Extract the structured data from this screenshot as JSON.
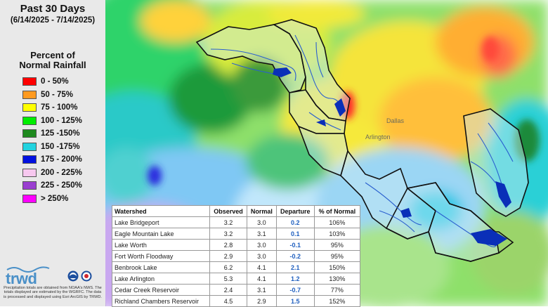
{
  "header": {
    "title": "Past 30 Days",
    "date_range": "(6/14/2025 - 7/14/2025)"
  },
  "legend": {
    "heading_line1": "Percent of",
    "heading_line2": "Normal Rainfall",
    "items": [
      {
        "label": "0 - 50%",
        "color": "#ff0000"
      },
      {
        "label": "50 - 75%",
        "color": "#ff9a1f"
      },
      {
        "label": "75 - 100%",
        "color": "#ffff00"
      },
      {
        "label": "100 - 125%",
        "color": "#00ee00"
      },
      {
        "label": "125 -150%",
        "color": "#1f8a1f"
      },
      {
        "label": "150 -175%",
        "color": "#22d3df"
      },
      {
        "label": "175 - 200%",
        "color": "#0010e0"
      },
      {
        "label": "200 - 225%",
        "color": "#f7c8ef"
      },
      {
        "label": "225 - 250%",
        "color": "#9a3fd0"
      },
      {
        "label": "> 250%",
        "color": "#ff00ff"
      }
    ]
  },
  "branding": {
    "logo_text": "trwd",
    "disclaimer": "Precipitation totals are obtained from NOAA's NWS. The totals displayed are estimated by the WGRFC. The data is processed and displayed using Esri ArcGIS by TRWD.",
    "agency_icons": [
      "noaa-icon",
      "nws-icon"
    ]
  },
  "table": {
    "headers": [
      "Watershed",
      "Observed",
      "Normal",
      "Departure",
      "% of Normal"
    ],
    "rows": [
      [
        "Lake Bridgeport",
        "3.2",
        "3.0",
        "0.2",
        "106%"
      ],
      [
        "Eagle Mountain Lake",
        "3.2",
        "3.1",
        "0.1",
        "103%"
      ],
      [
        "Lake Worth",
        "2.8",
        "3.0",
        "-0.1",
        "95%"
      ],
      [
        "Fort Worth Floodway",
        "2.9",
        "3.0",
        "-0.2",
        "95%"
      ],
      [
        "Benbrook Lake",
        "6.2",
        "4.1",
        "2.1",
        "150%"
      ],
      [
        "Lake Arlington",
        "5.3",
        "4.1",
        "1.2",
        "130%"
      ],
      [
        "Cedar Creek Reservoir",
        "2.4",
        "3.1",
        "-0.7",
        "77%"
      ],
      [
        "Richland Chambers Reservoir",
        "4.5",
        "2.9",
        "1.5",
        "152%"
      ]
    ]
  },
  "map_labels": {
    "city_1": "Dallas",
    "city_2": "Arlington"
  }
}
